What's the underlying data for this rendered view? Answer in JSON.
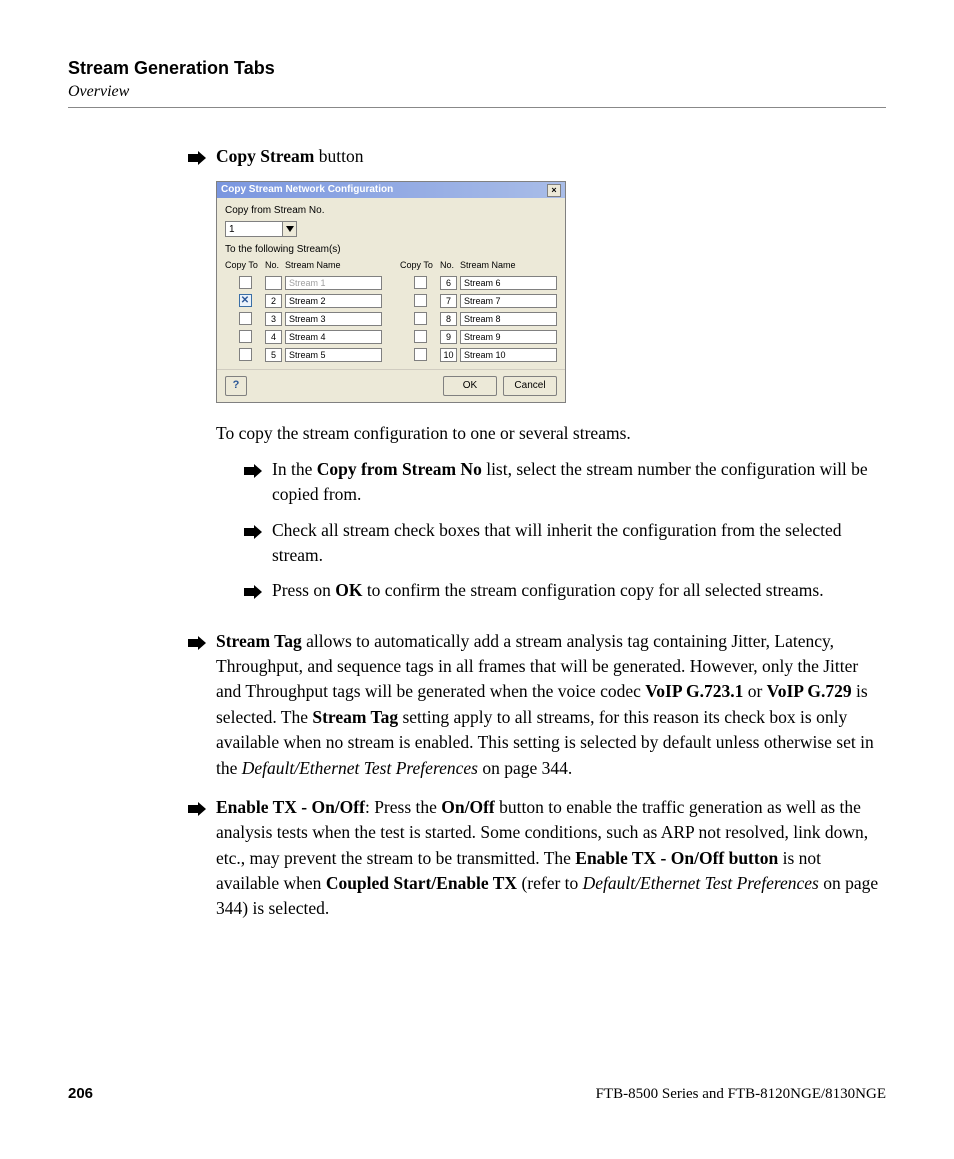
{
  "header": {
    "title": "Stream Generation Tabs",
    "subtitle": "Overview"
  },
  "b1": {
    "lead_bold": "Copy Stream",
    "lead_rest": " button"
  },
  "dialog": {
    "title": "Copy Stream Network Configuration",
    "copy_from_label": "Copy from Stream No.",
    "copy_from_value": "1",
    "following_label": "To the following Stream(s)",
    "col_copyto": "Copy To",
    "col_no": "No.",
    "col_name": "Stream Name",
    "left": [
      {
        "no": "",
        "name": "Stream 1",
        "disabled": true,
        "checked": false
      },
      {
        "no": "2",
        "name": "Stream 2",
        "disabled": false,
        "checked": true
      },
      {
        "no": "3",
        "name": "Stream 3",
        "disabled": false,
        "checked": false
      },
      {
        "no": "4",
        "name": "Stream 4",
        "disabled": false,
        "checked": false
      },
      {
        "no": "5",
        "name": "Stream 5",
        "disabled": false,
        "checked": false
      }
    ],
    "right": [
      {
        "no": "6",
        "name": "Stream 6",
        "disabled": false,
        "checked": false
      },
      {
        "no": "7",
        "name": "Stream 7",
        "disabled": false,
        "checked": false
      },
      {
        "no": "8",
        "name": "Stream 8",
        "disabled": false,
        "checked": false
      },
      {
        "no": "9",
        "name": "Stream 9",
        "disabled": false,
        "checked": false
      },
      {
        "no": "10",
        "name": "Stream 10",
        "disabled": false,
        "checked": false
      }
    ],
    "ok": "OK",
    "cancel": "Cancel"
  },
  "para_after_dialog": "To copy the stream configuration to one or several streams.",
  "sub1_a": "In the ",
  "sub1_b": "Copy from Stream No",
  "sub1_c": " list, select the stream number the configuration will be copied from.",
  "sub2": "Check all stream check boxes that will inherit the configuration from the selected stream.",
  "sub3_a": "Press on ",
  "sub3_b": "OK",
  "sub3_c": " to confirm the stream configuration copy for all selected streams.",
  "b2": {
    "p1_a": "Stream Tag",
    "p1_b": " allows to automatically add a stream analysis tag containing Jitter, Latency, Throughput, and sequence tags in all frames that will be generated. However, only the Jitter and Throughput tags will be generated when the voice codec ",
    "p1_c": "VoIP G.723.1",
    "p1_d": " or ",
    "p1_e": "VoIP G.729",
    "p1_f": " is selected. The ",
    "p1_g": "Stream Tag",
    "p1_h": " setting apply to all streams, for this reason its check box is only available when no stream is enabled. This setting is selected by default unless otherwise set in the ",
    "p1_i": "Default/Ethernet Test Preferences",
    "p1_j": " on page 344."
  },
  "b3": {
    "a": "Enable TX - On/Off",
    "b": ": Press the ",
    "c": "On/Off",
    "d": " button to enable the traffic generation as well as the analysis tests when the test is started. Some conditions, such as ARP not resolved, link down, etc., may prevent the stream to be transmitted. The ",
    "e": "Enable TX - On/Off button",
    "f": " is not available when ",
    "g": "Coupled Start/Enable TX",
    "h": " (refer to ",
    "i": "Default/Ethernet Test Preferences",
    "j": " on page 344) is selected."
  },
  "footer": {
    "page": "206",
    "product": "FTB-8500 Series and FTB-8120NGE/8130NGE"
  }
}
